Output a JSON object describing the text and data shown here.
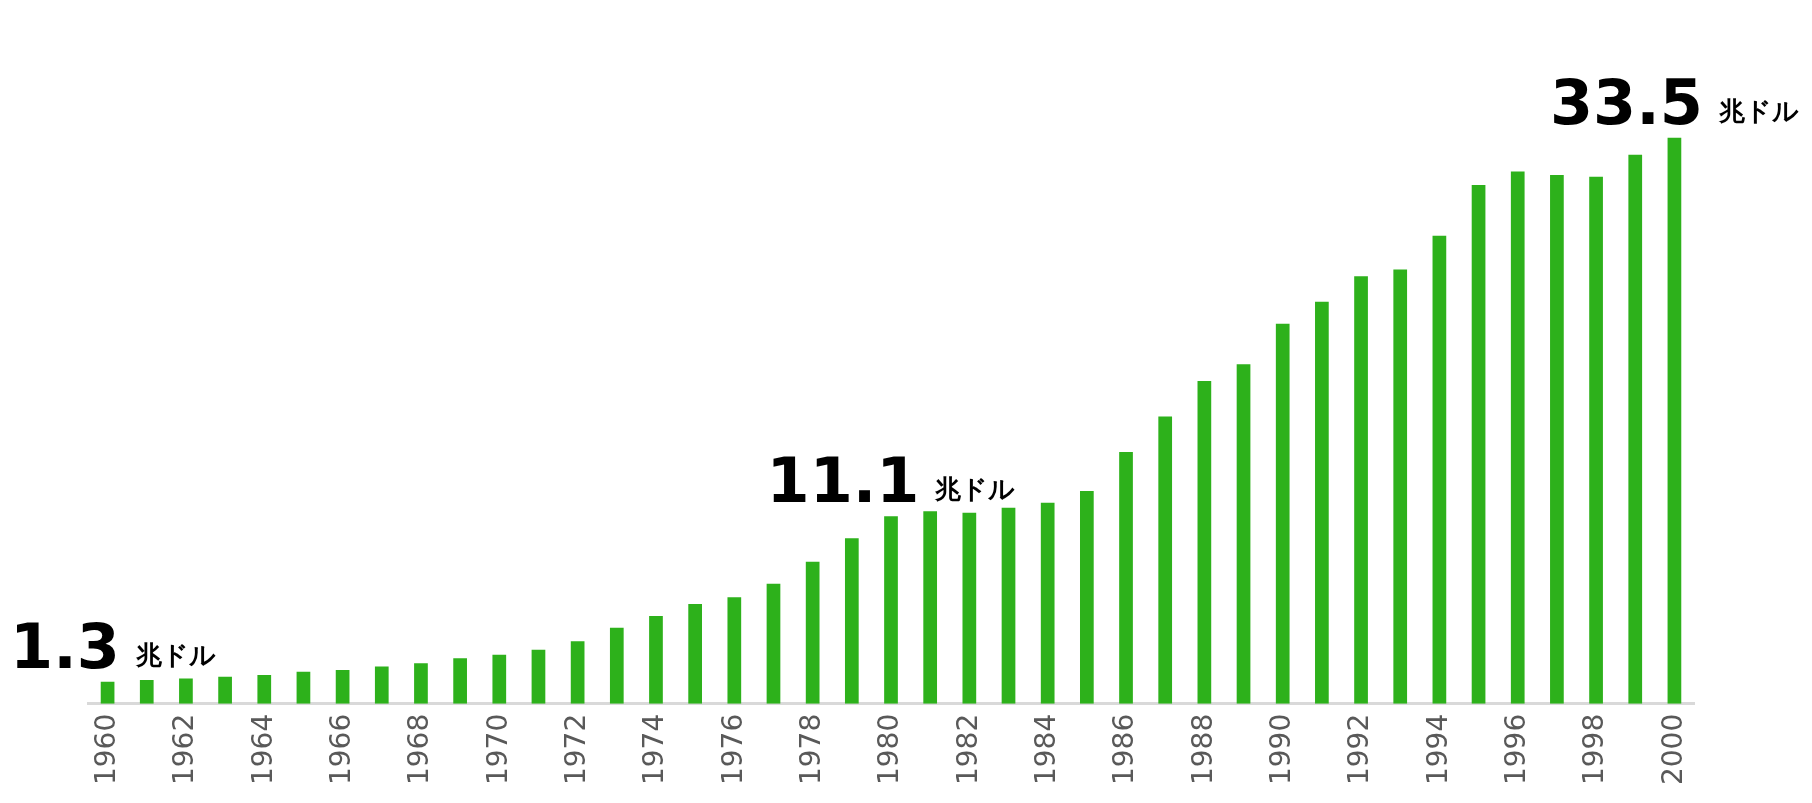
{
  "chart_data": {
    "type": "bar",
    "categories": [
      "1960",
      null,
      "1962",
      null,
      "1964",
      null,
      "1966",
      null,
      "1968",
      null,
      "1970",
      null,
      "1972",
      null,
      "1974",
      null,
      "1976",
      null,
      "1978",
      null,
      "1980",
      null,
      "1982",
      null,
      "1984",
      null,
      "1986",
      null,
      "1988",
      null,
      "1990",
      null,
      "1992",
      null,
      "1994",
      null,
      "1996",
      null,
      "1998",
      null,
      "2000"
    ],
    "values": [
      1.3,
      1.4,
      1.5,
      1.6,
      1.7,
      1.9,
      2.0,
      2.2,
      2.4,
      2.7,
      2.9,
      3.2,
      3.7,
      4.5,
      5.2,
      5.9,
      6.3,
      7.1,
      8.4,
      9.8,
      11.1,
      11.4,
      11.3,
      11.6,
      11.9,
      12.6,
      14.9,
      17.0,
      19.1,
      20.1,
      22.5,
      23.8,
      25.3,
      25.7,
      27.7,
      30.7,
      31.5,
      31.3,
      31.2,
      32.5,
      33.5
    ],
    "value_labels": [
      "1.3 兆ドル",
      null,
      null,
      null,
      null,
      null,
      null,
      null,
      null,
      null,
      null,
      null,
      null,
      null,
      null,
      null,
      null,
      null,
      null,
      null,
      "11.1 兆ドル",
      null,
      null,
      null,
      null,
      null,
      null,
      null,
      null,
      null,
      null,
      null,
      null,
      null,
      null,
      null,
      null,
      null,
      null,
      null,
      "33.5 兆ドル"
    ],
    "color": "#2db11b",
    "grid": false,
    "legend": false
  }
}
